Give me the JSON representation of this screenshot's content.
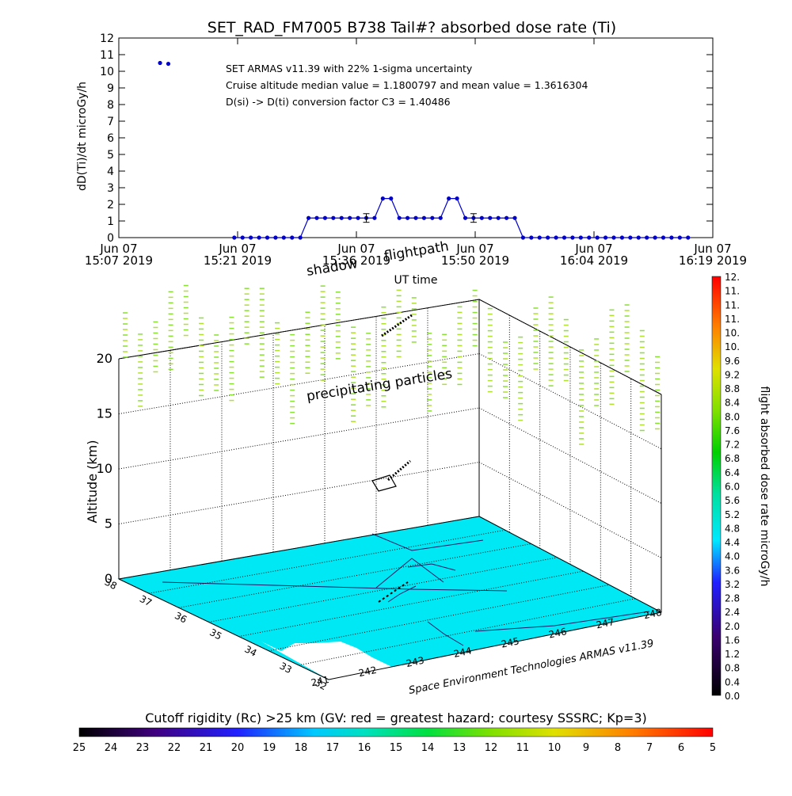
{
  "title": "SET_RAD_FM7005   B738 Tail#? absorbed dose rate (Ti)",
  "chart_data": [
    {
      "type": "line",
      "ylabel": "dD(Ti)/dt microGy/h",
      "xlabel": "UT time",
      "ylim": [
        0,
        12
      ],
      "yticks": [
        "0",
        "1",
        "2",
        "3",
        "4",
        "5",
        "6",
        "7",
        "8",
        "9",
        "10",
        "11",
        "12"
      ],
      "xticks": [
        {
          "l1": "Jun 07",
          "l2": "15:07 2019"
        },
        {
          "l1": "Jun 07",
          "l2": "15:21 2019"
        },
        {
          "l1": "Jun 07",
          "l2": "15:36 2019"
        },
        {
          "l1": "Jun 07",
          "l2": "15:50 2019"
        },
        {
          "l1": "Jun 07",
          "l2": "16:04 2019"
        },
        {
          "l1": "Jun 07",
          "l2": "16:19 2019"
        }
      ],
      "xlim": [
        "15:07",
        "16:19"
      ],
      "annotations": [
        "SET ARMAS v11.39 with 22% 1-sigma uncertainty",
        "Cruise altitude median value = 1.1800797 and mean value = 1.3616304",
        "D(si) -> D(ti) conversion factor C3 = 1.40486"
      ],
      "series": [
        {
          "color": "#0000cc",
          "x": [
            "15:12",
            "15:13",
            "15:21",
            "15:22",
            "15:23",
            "15:24",
            "15:25",
            "15:26",
            "15:27",
            "15:28",
            "15:29",
            "15:30",
            "15:31",
            "15:32",
            "15:33",
            "15:34",
            "15:35",
            "15:36",
            "15:37",
            "15:38",
            "15:39",
            "15:40",
            "15:41",
            "15:42",
            "15:43",
            "15:44",
            "15:45",
            "15:46",
            "15:47",
            "15:48",
            "15:49",
            "15:50",
            "15:51",
            "15:52",
            "15:53",
            "15:54",
            "15:55",
            "15:56",
            "15:57",
            "15:58",
            "15:59",
            "16:00",
            "16:01",
            "16:02",
            "16:03",
            "16:04",
            "16:05",
            "16:06",
            "16:07",
            "16:08",
            "16:09",
            "16:10",
            "16:11",
            "16:12",
            "16:13",
            "16:14",
            "16:15",
            "16:16"
          ],
          "y": [
            10.5,
            10.45,
            0,
            0,
            0,
            0,
            0,
            0,
            0,
            0,
            0,
            1.18,
            1.18,
            1.18,
            1.18,
            1.18,
            1.18,
            1.18,
            1.18,
            1.18,
            2.35,
            2.35,
            1.18,
            1.18,
            1.18,
            1.18,
            1.18,
            1.18,
            2.35,
            2.35,
            1.18,
            1.18,
            1.18,
            1.18,
            1.18,
            1.18,
            1.18,
            0,
            0,
            0,
            0,
            0,
            0,
            0,
            0,
            0,
            0,
            0,
            0,
            0,
            0,
            0,
            0,
            0,
            0,
            0,
            0,
            0
          ],
          "y_error_bars": [
            {
              "x": "15:37",
              "y": 1.18,
              "err": 0.26
            },
            {
              "x": "15:50",
              "y": 1.18,
              "err": 0.26
            }
          ]
        }
      ]
    },
    {
      "type": "scatter",
      "ylabel": "Altitude (km)",
      "zticks": [
        "0",
        "5",
        "10",
        "15",
        "20"
      ],
      "xticks": [
        "241",
        "242",
        "243",
        "244",
        "245",
        "246",
        "247",
        "248"
      ],
      "yticks": [
        "32",
        "33",
        "34",
        "35",
        "36",
        "37",
        "38"
      ],
      "labels": [
        "shadow",
        "flightpath",
        "precipitating particles"
      ],
      "credit": "Space Environment Technologies ARMAS v11.39",
      "colorbar": {
        "label": "flight absorbed dose rate microGy/h",
        "ticks": [
          "0.0",
          "0.4",
          "0.8",
          "1.2",
          "1.6",
          "2.0",
          "2.4",
          "2.8",
          "3.2",
          "3.6",
          "4.0",
          "4.4",
          "4.8",
          "5.2",
          "5.6",
          "6.0",
          "6.4",
          "6.8",
          "7.2",
          "7.6",
          "8.0",
          "8.4",
          "8.8",
          "9.2",
          "9.6",
          "10.",
          "10.",
          "11.",
          "11.",
          "11.",
          "12."
        ]
      }
    },
    {
      "type": "heatmap",
      "title": "Cutoff rigidity (Rc) >25 km (GV: red = greatest hazard; courtesy SSSRC; Kp=3)",
      "ticks": [
        "25",
        "24",
        "23",
        "22",
        "21",
        "20",
        "19",
        "18",
        "17",
        "16",
        "15",
        "14",
        "13",
        "12",
        "11",
        "10",
        "9",
        "8",
        "7",
        "6",
        "5"
      ],
      "colors": [
        "#000000",
        "#2a0040",
        "#4a008a",
        "#3c00c8",
        "#0a28ff",
        "#0090ff",
        "#00e0ff",
        "#00e0a0",
        "#00e030",
        "#40e000",
        "#a0e000",
        "#e0e000",
        "#ffa000",
        "#ff5000",
        "#ff0000"
      ]
    }
  ]
}
